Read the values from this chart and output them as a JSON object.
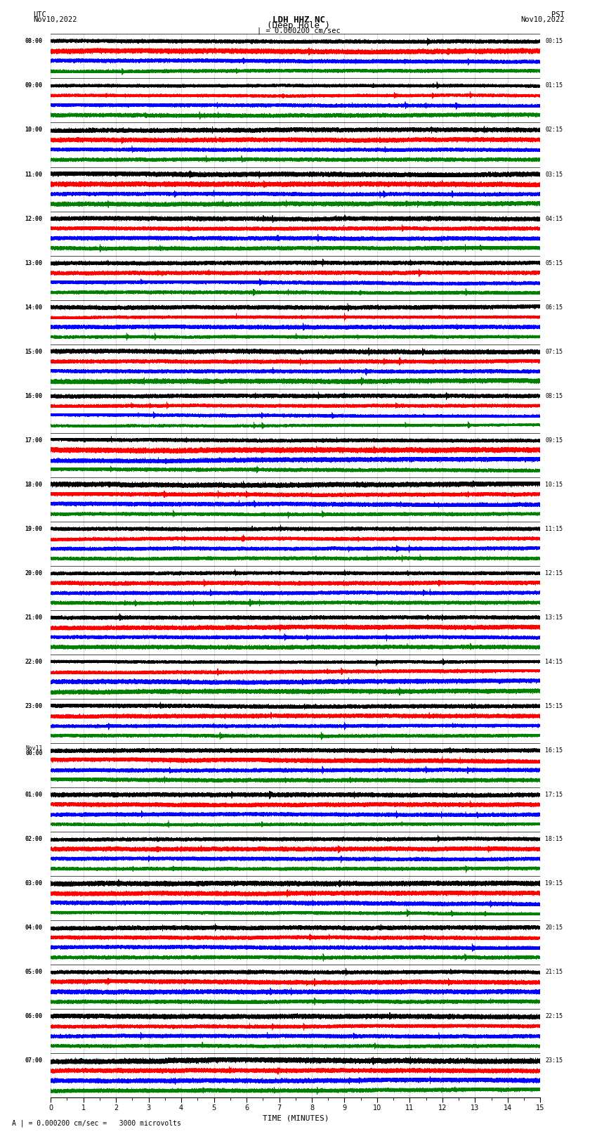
{
  "title_line1": "LDH HHZ NC",
  "title_line2": "(Deep Hole )",
  "scale_label": "| = 0.000200 cm/sec",
  "bottom_label": "A | = 0.000200 cm/sec =   3000 microvolts",
  "xlabel": "TIME (MINUTES)",
  "utc_label": "UTC\nNov10,2022",
  "pst_label": "PST\nNov10,2022",
  "left_times_utc": [
    "08:00",
    "09:00",
    "10:00",
    "11:00",
    "12:00",
    "13:00",
    "14:00",
    "15:00",
    "16:00",
    "17:00",
    "18:00",
    "19:00",
    "20:00",
    "21:00",
    "22:00",
    "23:00",
    "Nov11\n00:00",
    "01:00",
    "02:00",
    "03:00",
    "04:00",
    "05:00",
    "06:00",
    "07:00"
  ],
  "right_times_pst": [
    "00:15",
    "01:15",
    "02:15",
    "03:15",
    "04:15",
    "05:15",
    "06:15",
    "07:15",
    "08:15",
    "09:15",
    "10:15",
    "11:15",
    "12:15",
    "13:15",
    "14:15",
    "15:15",
    "16:15",
    "17:15",
    "18:15",
    "19:15",
    "20:15",
    "21:15",
    "22:15",
    "23:15"
  ],
  "colors": [
    "black",
    "red",
    "blue",
    "green"
  ],
  "n_rows": 24,
  "traces_per_row": 4,
  "minutes": 15,
  "sample_rate": 50,
  "bg_color": "white",
  "noise_amplitude": [
    0.25,
    0.5,
    0.4,
    0.2
  ],
  "event_amplitude": [
    1.2,
    2.5,
    2.0,
    1.2
  ]
}
